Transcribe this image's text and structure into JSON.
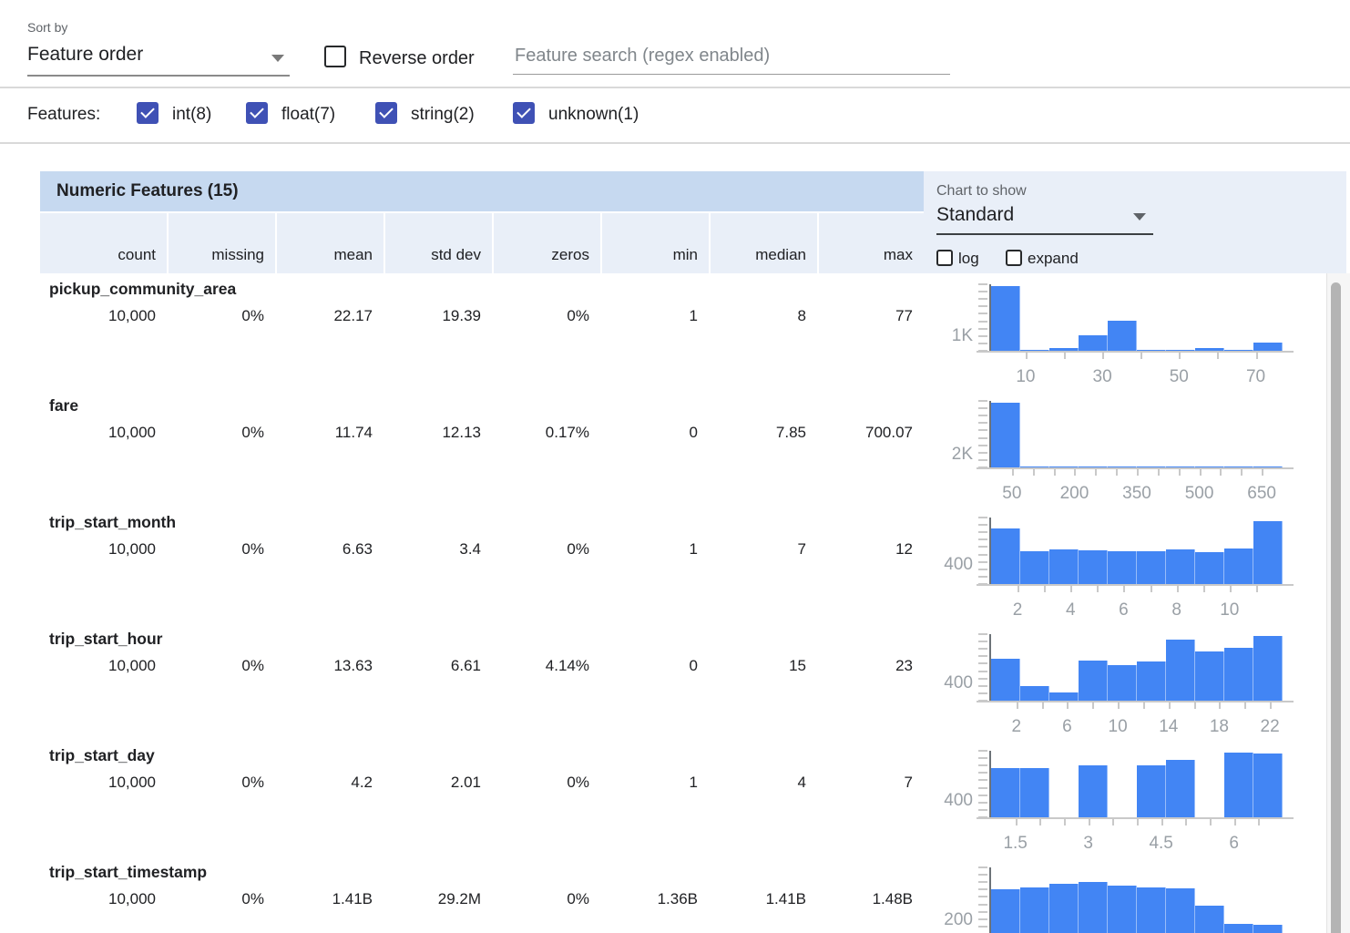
{
  "toolbar": {
    "sort_by_label": "Sort by",
    "sort_value": "Feature order",
    "reverse_label": "Reverse order",
    "search_placeholder": "Feature search (regex enabled)"
  },
  "filters": {
    "label": "Features:",
    "items": [
      {
        "label": "int(8)",
        "checked": true
      },
      {
        "label": "float(7)",
        "checked": true
      },
      {
        "label": "string(2)",
        "checked": true
      },
      {
        "label": "unknown(1)",
        "checked": true
      }
    ]
  },
  "table": {
    "title": "Numeric Features (15)",
    "columns": [
      "count",
      "missing",
      "mean",
      "std dev",
      "zeros",
      "min",
      "median",
      "max"
    ]
  },
  "chart_panel": {
    "label": "Chart to show",
    "value": "Standard",
    "log_label": "log",
    "expand_label": "expand"
  },
  "colors": {
    "accent_checkbox": "#3f51b5",
    "bar_blue": "#4285f4",
    "title_band": "#c6d9f0",
    "subheader_band": "#e9eff8"
  },
  "features": [
    {
      "name": "pickup_community_area",
      "stats": [
        "10,000",
        "0%",
        "22.17",
        "19.39",
        "0%",
        "1",
        "8",
        "77"
      ],
      "chart": {
        "type": "histogram",
        "x_min": 1,
        "x_max": 77,
        "values": [
          4450,
          60,
          200,
          1050,
          2100,
          30,
          15,
          160,
          20,
          550
        ],
        "axis_max": 4600,
        "y_label": "1K",
        "y_label_value": 1000,
        "x_ticks": [
          10,
          20,
          30,
          40,
          50,
          60,
          70
        ],
        "x_labels": [
          {
            "v": 10,
            "t": "10"
          },
          {
            "v": 30,
            "t": "30"
          },
          {
            "v": 50,
            "t": "50"
          },
          {
            "v": 70,
            "t": "70"
          }
        ]
      }
    },
    {
      "name": "fare",
      "stats": [
        "10,000",
        "0%",
        "11.74",
        "12.13",
        "0.17%",
        "0",
        "7.85",
        "700.07"
      ],
      "chart": {
        "type": "histogram",
        "x_min": 0,
        "x_max": 700,
        "values": [
          9950,
          20,
          8,
          4,
          3,
          2,
          2,
          1,
          1,
          1
        ],
        "axis_max": 10300,
        "y_label": "2K",
        "y_label_value": 2000,
        "x_ticks": [
          50,
          100,
          150,
          200,
          250,
          300,
          350,
          400,
          450,
          500,
          550,
          600,
          650
        ],
        "x_labels": [
          {
            "v": 50,
            "t": "50"
          },
          {
            "v": 200,
            "t": "200"
          },
          {
            "v": 350,
            "t": "350"
          },
          {
            "v": 500,
            "t": "500"
          },
          {
            "v": 650,
            "t": "650"
          }
        ]
      }
    },
    {
      "name": "trip_start_month",
      "stats": [
        "10,000",
        "0%",
        "6.63",
        "3.4",
        "0%",
        "1",
        "7",
        "12"
      ],
      "chart": {
        "type": "histogram",
        "x_min": 1,
        "x_max": 12,
        "values": [
          1170,
          700,
          720,
          715,
          700,
          695,
          725,
          680,
          745,
          1330
        ],
        "axis_max": 1400,
        "y_label": "400",
        "y_label_value": 400,
        "x_ticks": [
          2,
          3,
          4,
          5,
          6,
          7,
          8,
          9,
          10,
          11
        ],
        "x_labels": [
          {
            "v": 2,
            "t": "2"
          },
          {
            "v": 4,
            "t": "4"
          },
          {
            "v": 6,
            "t": "6"
          },
          {
            "v": 8,
            "t": "8"
          },
          {
            "v": 10,
            "t": "10"
          }
        ]
      }
    },
    {
      "name": "trip_start_hour",
      "stats": [
        "10,000",
        "0%",
        "13.63",
        "6.61",
        "4.14%",
        "0",
        "15",
        "23"
      ],
      "chart": {
        "type": "histogram",
        "x_min": 0,
        "x_max": 23,
        "values": [
          980,
          350,
          200,
          950,
          830,
          920,
          1430,
          1150,
          1240,
          1510
        ],
        "axis_max": 1560,
        "y_label": "400",
        "y_label_value": 400,
        "x_ticks": [
          2,
          4,
          6,
          8,
          10,
          12,
          14,
          16,
          18,
          20,
          22
        ],
        "x_labels": [
          {
            "v": 2,
            "t": "2"
          },
          {
            "v": 6,
            "t": "6"
          },
          {
            "v": 10,
            "t": "10"
          },
          {
            "v": 14,
            "t": "14"
          },
          {
            "v": 18,
            "t": "18"
          },
          {
            "v": 22,
            "t": "22"
          }
        ]
      }
    },
    {
      "name": "trip_start_day",
      "stats": [
        "10,000",
        "0%",
        "4.2",
        "2.01",
        "0%",
        "1",
        "4",
        "7"
      ],
      "chart": {
        "type": "histogram",
        "x_min": 1,
        "x_max": 7,
        "values": [
          1190,
          1190,
          0,
          1245,
          0,
          1260,
          1380,
          0,
          1550,
          1545
        ],
        "axis_max": 1600,
        "y_label": "400",
        "y_label_value": 400,
        "x_ticks": [
          1.5,
          2,
          2.5,
          3,
          3.5,
          4,
          4.5,
          5,
          5.5,
          6,
          6.5
        ],
        "x_labels": [
          {
            "v": 1.5,
            "t": "1.5"
          },
          {
            "v": 3,
            "t": "3"
          },
          {
            "v": 4.5,
            "t": "4.5"
          },
          {
            "v": 6,
            "t": "6"
          }
        ]
      }
    },
    {
      "name": "trip_start_timestamp",
      "stats": [
        "10,000",
        "0%",
        "1.41B",
        "29.2M",
        "0%",
        "1.36B",
        "1.41B",
        "1.48B"
      ],
      "chart": {
        "type": "histogram",
        "x_min": 0,
        "x_max": 10,
        "values": [
          670,
          700,
          760,
          780,
          730,
          700,
          690,
          430,
          150,
          140
        ],
        "axis_max": 1000,
        "y_label": "200",
        "y_label_value": 200,
        "x_ticks": [],
        "x_labels": []
      }
    }
  ]
}
